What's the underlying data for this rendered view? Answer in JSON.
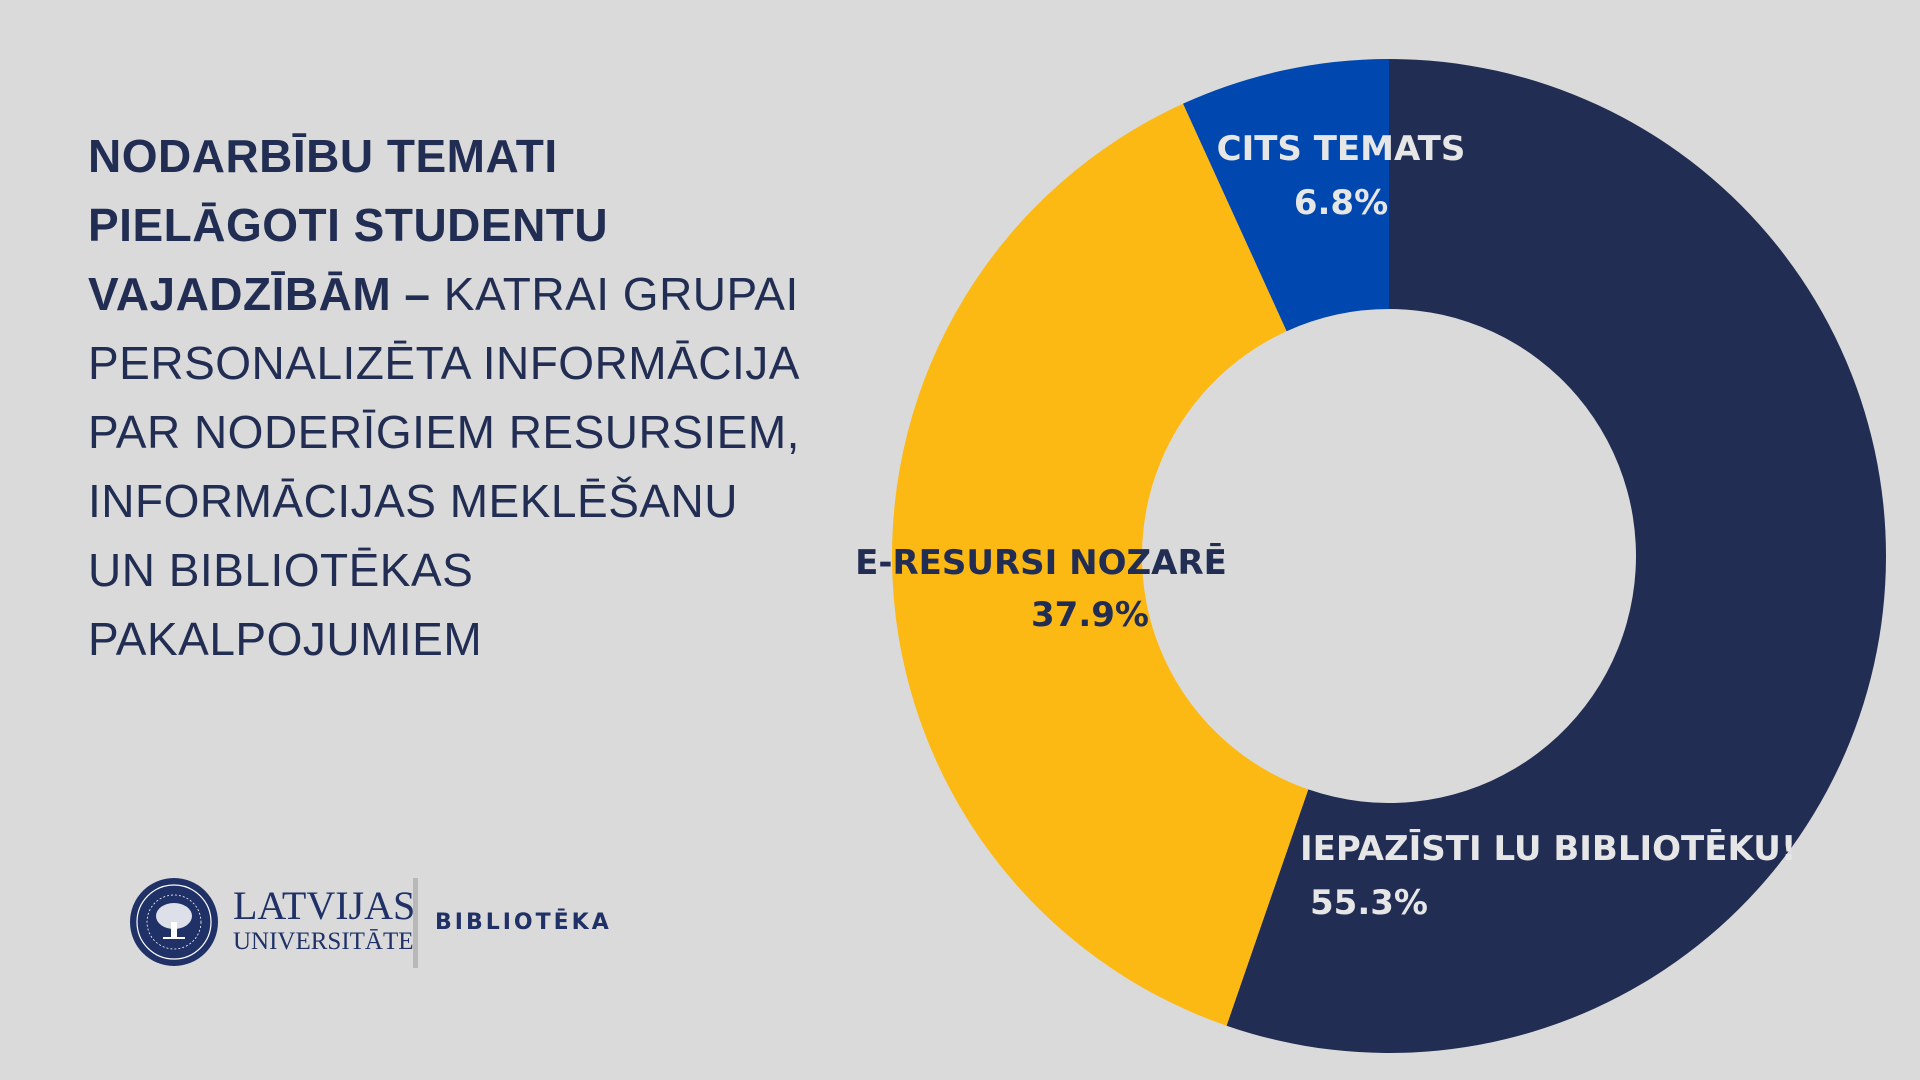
{
  "heading": {
    "bold_part": "NODARBĪBU TEMATI PIELĀGOTI STUDENTU VAJADZĪBĀM –",
    "normal_part": " KATRAI GRUPAI PERSONALIZĒTA INFORMĀCIJA PAR NODERĪGIEM RESURSIEM, INFORMĀCIJAS MEKLĒŠANU UN  BIBLIOTĒKAS PAKALPOJUMIEM"
  },
  "logo": {
    "line1": "LATVIJAS",
    "line2": "UNIVERSITĀTE",
    "unit": "BIBLIOTĒKA",
    "seal_text": "UNIVERSITAS LATVIENSIS · SCIENTIAE ET PATRIAE"
  },
  "chart_data": {
    "type": "pie",
    "variant": "donut",
    "title": "",
    "start": "top",
    "direction": "clockwise",
    "slices": [
      {
        "label": "IEPAZĪSTI LU BIBLIOTĒKU!",
        "value": 55.3,
        "value_label": "55.3%",
        "color": "#212d52",
        "text_color": "#e6e6e6"
      },
      {
        "label": "E-RESURSI NOZARĒ",
        "value": 37.9,
        "value_label": "37.9%",
        "color": "#fdb913",
        "text_color": "#212d52"
      },
      {
        "label": "CITS TEMATS",
        "value": 6.8,
        "value_label": "6.8%",
        "color": "#0047b0",
        "text_color": "#e6e6e6"
      }
    ]
  }
}
